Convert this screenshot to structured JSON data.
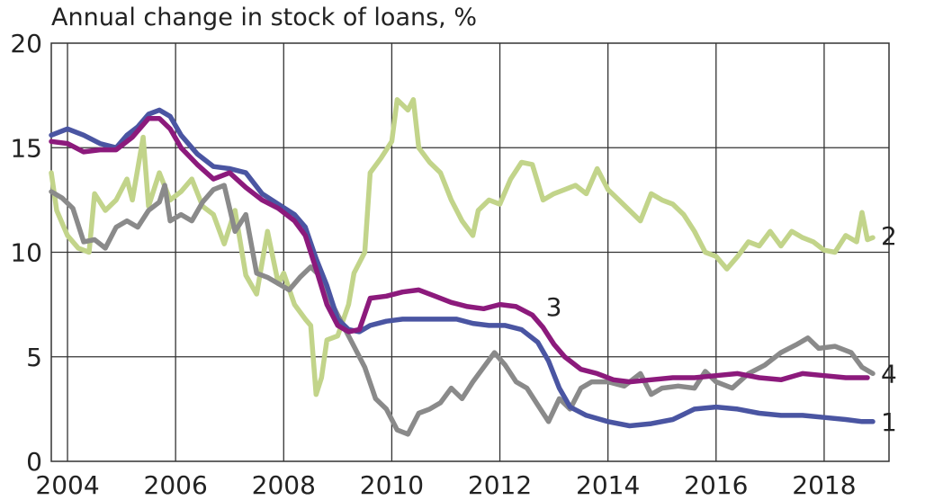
{
  "chart_data": {
    "type": "line",
    "title": "Annual change in stock of loans, %",
    "xlabel": "",
    "ylabel": "",
    "xlim": [
      2003.7,
      2019.2
    ],
    "ylim": [
      0,
      20
    ],
    "grid": true,
    "x_ticks": [
      2004,
      2006,
      2008,
      2010,
      2012,
      2014,
      2016,
      2018
    ],
    "x_tick_labels": [
      "2004",
      "2006",
      "2008",
      "2010",
      "2012",
      "2014",
      "2016",
      "2018"
    ],
    "y_ticks": [
      0,
      5,
      10,
      15,
      20
    ],
    "y_tick_labels": [
      "0",
      "5",
      "10",
      "15",
      "20"
    ],
    "series": [
      {
        "name": "1",
        "color": "#4a55a2",
        "points": [
          [
            2003.7,
            15.6
          ],
          [
            2004.0,
            15.9
          ],
          [
            2004.3,
            15.6
          ],
          [
            2004.6,
            15.2
          ],
          [
            2004.9,
            15.0
          ],
          [
            2005.1,
            15.6
          ],
          [
            2005.3,
            16.0
          ],
          [
            2005.5,
            16.6
          ],
          [
            2005.7,
            16.8
          ],
          [
            2005.9,
            16.5
          ],
          [
            2006.1,
            15.6
          ],
          [
            2006.4,
            14.7
          ],
          [
            2006.7,
            14.1
          ],
          [
            2007.0,
            14.0
          ],
          [
            2007.3,
            13.8
          ],
          [
            2007.6,
            12.8
          ],
          [
            2007.9,
            12.3
          ],
          [
            2008.2,
            11.8
          ],
          [
            2008.4,
            11.2
          ],
          [
            2008.6,
            9.7
          ],
          [
            2008.8,
            8.4
          ],
          [
            2009.0,
            6.8
          ],
          [
            2009.2,
            6.3
          ],
          [
            2009.4,
            6.2
          ],
          [
            2009.6,
            6.5
          ],
          [
            2009.9,
            6.7
          ],
          [
            2010.2,
            6.8
          ],
          [
            2010.5,
            6.8
          ],
          [
            2010.8,
            6.8
          ],
          [
            2011.2,
            6.8
          ],
          [
            2011.5,
            6.6
          ],
          [
            2011.8,
            6.5
          ],
          [
            2012.1,
            6.5
          ],
          [
            2012.4,
            6.3
          ],
          [
            2012.7,
            5.7
          ],
          [
            2012.9,
            4.8
          ],
          [
            2013.1,
            3.5
          ],
          [
            2013.3,
            2.6
          ],
          [
            2013.6,
            2.2
          ],
          [
            2014.0,
            1.9
          ],
          [
            2014.4,
            1.7
          ],
          [
            2014.8,
            1.8
          ],
          [
            2015.2,
            2.0
          ],
          [
            2015.6,
            2.5
          ],
          [
            2016.0,
            2.6
          ],
          [
            2016.4,
            2.5
          ],
          [
            2016.8,
            2.3
          ],
          [
            2017.2,
            2.2
          ],
          [
            2017.6,
            2.2
          ],
          [
            2018.0,
            2.1
          ],
          [
            2018.4,
            2.0
          ],
          [
            2018.7,
            1.9
          ],
          [
            2018.9,
            1.9
          ]
        ]
      },
      {
        "name": "2",
        "color": "#c2d48a",
        "points": [
          [
            2003.7,
            13.8
          ],
          [
            2003.8,
            12.0
          ],
          [
            2004.0,
            10.8
          ],
          [
            2004.2,
            10.2
          ],
          [
            2004.4,
            10.0
          ],
          [
            2004.5,
            12.8
          ],
          [
            2004.7,
            12.0
          ],
          [
            2004.9,
            12.5
          ],
          [
            2005.1,
            13.5
          ],
          [
            2005.2,
            12.5
          ],
          [
            2005.4,
            15.5
          ],
          [
            2005.5,
            12.2
          ],
          [
            2005.7,
            13.8
          ],
          [
            2005.9,
            12.5
          ],
          [
            2006.1,
            12.9
          ],
          [
            2006.3,
            13.5
          ],
          [
            2006.5,
            12.2
          ],
          [
            2006.7,
            11.8
          ],
          [
            2006.9,
            10.4
          ],
          [
            2007.1,
            12.0
          ],
          [
            2007.3,
            8.9
          ],
          [
            2007.5,
            8.0
          ],
          [
            2007.7,
            11.0
          ],
          [
            2007.9,
            8.5
          ],
          [
            2008.0,
            9.0
          ],
          [
            2008.2,
            7.5
          ],
          [
            2008.4,
            6.8
          ],
          [
            2008.5,
            6.5
          ],
          [
            2008.6,
            3.2
          ],
          [
            2008.7,
            4.0
          ],
          [
            2008.8,
            5.8
          ],
          [
            2009.0,
            6.0
          ],
          [
            2009.2,
            7.5
          ],
          [
            2009.3,
            9.0
          ],
          [
            2009.5,
            10.0
          ],
          [
            2009.6,
            13.8
          ],
          [
            2009.8,
            14.5
          ],
          [
            2010.0,
            15.3
          ],
          [
            2010.1,
            17.3
          ],
          [
            2010.3,
            16.8
          ],
          [
            2010.4,
            17.3
          ],
          [
            2010.5,
            15.0
          ],
          [
            2010.7,
            14.3
          ],
          [
            2010.9,
            13.8
          ],
          [
            2011.1,
            12.5
          ],
          [
            2011.3,
            11.5
          ],
          [
            2011.5,
            10.8
          ],
          [
            2011.6,
            12.0
          ],
          [
            2011.8,
            12.5
          ],
          [
            2012.0,
            12.3
          ],
          [
            2012.2,
            13.5
          ],
          [
            2012.4,
            14.3
          ],
          [
            2012.6,
            14.2
          ],
          [
            2012.8,
            12.5
          ],
          [
            2013.0,
            12.8
          ],
          [
            2013.2,
            13.0
          ],
          [
            2013.4,
            13.2
          ],
          [
            2013.6,
            12.8
          ],
          [
            2013.8,
            14.0
          ],
          [
            2014.0,
            13.0
          ],
          [
            2014.2,
            12.5
          ],
          [
            2014.4,
            12.0
          ],
          [
            2014.6,
            11.5
          ],
          [
            2014.8,
            12.8
          ],
          [
            2015.0,
            12.5
          ],
          [
            2015.2,
            12.3
          ],
          [
            2015.4,
            11.8
          ],
          [
            2015.6,
            11.0
          ],
          [
            2015.8,
            10.0
          ],
          [
            2016.0,
            9.8
          ],
          [
            2016.2,
            9.2
          ],
          [
            2016.4,
            9.8
          ],
          [
            2016.6,
            10.5
          ],
          [
            2016.8,
            10.3
          ],
          [
            2017.0,
            11.0
          ],
          [
            2017.2,
            10.3
          ],
          [
            2017.4,
            11.0
          ],
          [
            2017.6,
            10.7
          ],
          [
            2017.8,
            10.5
          ],
          [
            2018.0,
            10.1
          ],
          [
            2018.2,
            10.0
          ],
          [
            2018.4,
            10.8
          ],
          [
            2018.6,
            10.5
          ],
          [
            2018.7,
            11.9
          ],
          [
            2018.8,
            10.6
          ],
          [
            2018.9,
            10.7
          ]
        ]
      },
      {
        "name": "3",
        "color": "#8c1a7c",
        "points": [
          [
            2003.7,
            15.3
          ],
          [
            2004.0,
            15.2
          ],
          [
            2004.3,
            14.8
          ],
          [
            2004.6,
            14.9
          ],
          [
            2004.9,
            14.9
          ],
          [
            2005.2,
            15.5
          ],
          [
            2005.5,
            16.4
          ],
          [
            2005.7,
            16.4
          ],
          [
            2005.9,
            15.9
          ],
          [
            2006.1,
            15.0
          ],
          [
            2006.4,
            14.2
          ],
          [
            2006.7,
            13.5
          ],
          [
            2007.0,
            13.8
          ],
          [
            2007.3,
            13.1
          ],
          [
            2007.6,
            12.5
          ],
          [
            2007.9,
            12.1
          ],
          [
            2008.2,
            11.5
          ],
          [
            2008.4,
            10.8
          ],
          [
            2008.6,
            9.2
          ],
          [
            2008.8,
            7.5
          ],
          [
            2009.0,
            6.5
          ],
          [
            2009.2,
            6.2
          ],
          [
            2009.4,
            6.3
          ],
          [
            2009.6,
            7.8
          ],
          [
            2009.9,
            7.9
          ],
          [
            2010.2,
            8.1
          ],
          [
            2010.5,
            8.2
          ],
          [
            2010.8,
            7.9
          ],
          [
            2011.1,
            7.6
          ],
          [
            2011.4,
            7.4
          ],
          [
            2011.7,
            7.3
          ],
          [
            2012.0,
            7.5
          ],
          [
            2012.3,
            7.4
          ],
          [
            2012.6,
            7.0
          ],
          [
            2012.8,
            6.4
          ],
          [
            2013.0,
            5.6
          ],
          [
            2013.2,
            5.0
          ],
          [
            2013.5,
            4.4
          ],
          [
            2013.8,
            4.2
          ],
          [
            2014.1,
            3.9
          ],
          [
            2014.4,
            3.8
          ],
          [
            2014.8,
            3.9
          ],
          [
            2015.2,
            4.0
          ],
          [
            2015.6,
            4.0
          ],
          [
            2016.0,
            4.1
          ],
          [
            2016.4,
            4.2
          ],
          [
            2016.8,
            4.0
          ],
          [
            2017.2,
            3.9
          ],
          [
            2017.6,
            4.2
          ],
          [
            2018.0,
            4.1
          ],
          [
            2018.4,
            4.0
          ],
          [
            2018.8,
            4.0
          ]
        ]
      },
      {
        "name": "4",
        "color": "#8a8a8a",
        "points": [
          [
            2003.7,
            12.9
          ],
          [
            2003.9,
            12.6
          ],
          [
            2004.1,
            12.1
          ],
          [
            2004.3,
            10.5
          ],
          [
            2004.5,
            10.6
          ],
          [
            2004.7,
            10.2
          ],
          [
            2004.9,
            11.2
          ],
          [
            2005.1,
            11.5
          ],
          [
            2005.3,
            11.2
          ],
          [
            2005.5,
            12.0
          ],
          [
            2005.7,
            12.4
          ],
          [
            2005.8,
            13.2
          ],
          [
            2005.9,
            11.5
          ],
          [
            2006.1,
            11.8
          ],
          [
            2006.3,
            11.5
          ],
          [
            2006.5,
            12.4
          ],
          [
            2006.7,
            13.0
          ],
          [
            2006.9,
            13.2
          ],
          [
            2007.1,
            11.0
          ],
          [
            2007.3,
            11.8
          ],
          [
            2007.5,
            9.0
          ],
          [
            2007.7,
            8.8
          ],
          [
            2007.9,
            8.5
          ],
          [
            2008.1,
            8.2
          ],
          [
            2008.3,
            8.8
          ],
          [
            2008.5,
            9.3
          ],
          [
            2008.7,
            8.8
          ],
          [
            2008.9,
            7.5
          ],
          [
            2009.1,
            6.5
          ],
          [
            2009.3,
            5.5
          ],
          [
            2009.5,
            4.5
          ],
          [
            2009.7,
            3.0
          ],
          [
            2009.9,
            2.5
          ],
          [
            2010.1,
            1.5
          ],
          [
            2010.3,
            1.3
          ],
          [
            2010.5,
            2.3
          ],
          [
            2010.7,
            2.5
          ],
          [
            2010.9,
            2.8
          ],
          [
            2011.1,
            3.5
          ],
          [
            2011.3,
            3.0
          ],
          [
            2011.5,
            3.8
          ],
          [
            2011.7,
            4.5
          ],
          [
            2011.9,
            5.2
          ],
          [
            2012.1,
            4.6
          ],
          [
            2012.3,
            3.8
          ],
          [
            2012.5,
            3.5
          ],
          [
            2012.7,
            2.7
          ],
          [
            2012.9,
            1.9
          ],
          [
            2013.1,
            3.0
          ],
          [
            2013.3,
            2.5
          ],
          [
            2013.5,
            3.5
          ],
          [
            2013.7,
            3.8
          ],
          [
            2014.0,
            3.8
          ],
          [
            2014.3,
            3.6
          ],
          [
            2014.6,
            4.2
          ],
          [
            2014.8,
            3.2
          ],
          [
            2015.0,
            3.5
          ],
          [
            2015.3,
            3.6
          ],
          [
            2015.6,
            3.5
          ],
          [
            2015.8,
            4.3
          ],
          [
            2016.0,
            3.8
          ],
          [
            2016.3,
            3.5
          ],
          [
            2016.6,
            4.2
          ],
          [
            2016.9,
            4.6
          ],
          [
            2017.2,
            5.2
          ],
          [
            2017.5,
            5.6
          ],
          [
            2017.7,
            5.9
          ],
          [
            2017.9,
            5.4
          ],
          [
            2018.2,
            5.5
          ],
          [
            2018.5,
            5.2
          ],
          [
            2018.7,
            4.5
          ],
          [
            2018.9,
            4.2
          ]
        ]
      }
    ],
    "series_labels": [
      {
        "text": "1",
        "x": 2019.05,
        "y": 1.9
      },
      {
        "text": "2",
        "x": 2019.05,
        "y": 10.8
      },
      {
        "text": "3",
        "x": 2012.85,
        "y": 7.4
      },
      {
        "text": "4",
        "x": 2019.05,
        "y": 4.2
      }
    ]
  }
}
